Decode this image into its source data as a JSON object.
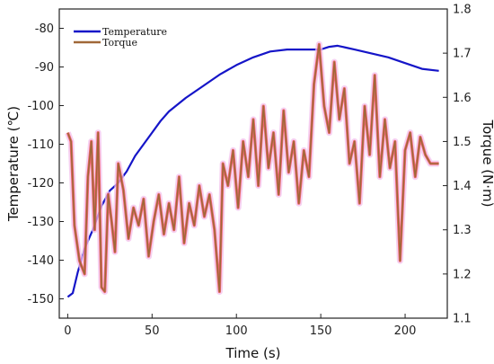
{
  "colors": {
    "temperature": "#1515c8",
    "torque": "#a06838",
    "torque_highlight": "#ee3a3a",
    "glow": "#f3c2ec"
  },
  "chart_data": {
    "type": "line",
    "xlabel": "Time (s)",
    "ylabel_left": "Temperature (℃)",
    "ylabel_right": "Torque (N·m)",
    "xlim": [
      -5,
      225
    ],
    "ylim_left": [
      -155,
      -75
    ],
    "ylim_right": [
      1.1,
      1.8
    ],
    "x_ticks": [
      0,
      50,
      100,
      150,
      200
    ],
    "y_ticks_left": [
      -150,
      -140,
      -130,
      -120,
      -110,
      -100,
      -90,
      -80
    ],
    "y_ticks_right": [
      1.1,
      1.2,
      1.3,
      1.4,
      1.5,
      1.6,
      1.7,
      1.8
    ],
    "legend": {
      "placement": "top-left",
      "entries": [
        "Temperature",
        "Torque"
      ]
    },
    "series": [
      {
        "name": "Temperature",
        "axis": "left",
        "x": [
          0,
          3,
          6,
          10,
          15,
          20,
          25,
          30,
          35,
          40,
          45,
          50,
          55,
          60,
          70,
          80,
          90,
          100,
          110,
          120,
          130,
          140,
          150,
          155,
          160,
          165,
          170,
          180,
          190,
          200,
          210,
          220
        ],
        "values": [
          -149.5,
          -148.5,
          -143,
          -137,
          -132,
          -126,
          -122,
          -120,
          -117,
          -113,
          -110,
          -107,
          -104,
          -101.5,
          -98,
          -95,
          -92,
          -89.5,
          -87.5,
          -86,
          -85.5,
          -85.5,
          -85.5,
          -84.8,
          -84.5,
          -85,
          -85.5,
          -86.5,
          -87.5,
          -89,
          -90.5,
          -91
        ]
      },
      {
        "name": "Torque",
        "axis": "right",
        "x": [
          0,
          2,
          4,
          7,
          10,
          12,
          14,
          16,
          18,
          20,
          22,
          24,
          26,
          28,
          30,
          33,
          36,
          39,
          42,
          45,
          48,
          51,
          54,
          57,
          60,
          63,
          66,
          69,
          72,
          75,
          78,
          81,
          84,
          87,
          90,
          92,
          95,
          98,
          101,
          104,
          107,
          110,
          113,
          116,
          119,
          122,
          125,
          128,
          131,
          134,
          137,
          140,
          143,
          146,
          149,
          152,
          155,
          158,
          161,
          164,
          167,
          170,
          173,
          176,
          179,
          182,
          185,
          188,
          191,
          194,
          197,
          200,
          203,
          206,
          209,
          212,
          215,
          220
        ],
        "values": [
          1.52,
          1.5,
          1.31,
          1.23,
          1.2,
          1.42,
          1.5,
          1.3,
          1.52,
          1.17,
          1.16,
          1.38,
          1.32,
          1.25,
          1.45,
          1.39,
          1.28,
          1.35,
          1.31,
          1.37,
          1.24,
          1.32,
          1.38,
          1.29,
          1.36,
          1.3,
          1.42,
          1.27,
          1.36,
          1.31,
          1.4,
          1.33,
          1.38,
          1.3,
          1.16,
          1.45,
          1.4,
          1.48,
          1.35,
          1.5,
          1.42,
          1.55,
          1.4,
          1.58,
          1.44,
          1.52,
          1.38,
          1.57,
          1.43,
          1.5,
          1.36,
          1.48,
          1.42,
          1.63,
          1.72,
          1.58,
          1.52,
          1.68,
          1.55,
          1.62,
          1.45,
          1.5,
          1.36,
          1.58,
          1.47,
          1.65,
          1.42,
          1.55,
          1.44,
          1.5,
          1.23,
          1.48,
          1.52,
          1.42,
          1.51,
          1.47,
          1.45,
          1.45
        ]
      }
    ]
  }
}
